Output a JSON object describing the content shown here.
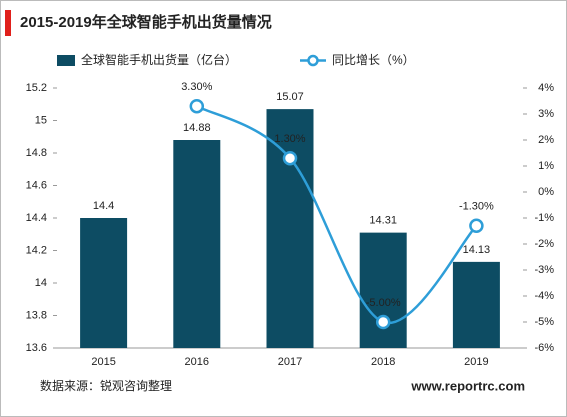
{
  "chart_data": {
    "type": "bar_line",
    "title": "2015-2019年全球智能手机出货量情况",
    "categories": [
      "2015",
      "2016",
      "2017",
      "2018",
      "2019"
    ],
    "series": [
      {
        "name": "全球智能手机出货量（亿台）",
        "color": "#0d4c63",
        "type": "bar",
        "values": [
          14.4,
          14.88,
          15.07,
          14.31,
          14.13
        ]
      },
      {
        "name": "同比增长（%）",
        "color": "#2e9ed8",
        "type": "line",
        "axis": "y2",
        "values": [
          null,
          3.3,
          1.3,
          -5.0,
          -1.3
        ],
        "value_labels": [
          null,
          "3.30%",
          "1.30%",
          "-5.00%",
          "-1.30%"
        ]
      }
    ],
    "ylim": [
      13.6,
      15.2
    ],
    "yticks": [
      13.6,
      13.8,
      14,
      14.2,
      14.4,
      14.6,
      14.8,
      15,
      15.2
    ],
    "y2lim": [
      -6,
      4
    ],
    "y2ticks": [
      {
        "value": -6,
        "label": "-6%"
      },
      {
        "value": -5,
        "label": "-5%"
      },
      {
        "value": -4,
        "label": "-4%"
      },
      {
        "value": -3,
        "label": "-3%"
      },
      {
        "value": -2,
        "label": "-2%"
      },
      {
        "value": -1,
        "label": "-1%"
      },
      {
        "value": 0,
        "label": "0%"
      },
      {
        "value": 1,
        "label": "1%"
      },
      {
        "value": 2,
        "label": "2%"
      },
      {
        "value": 3,
        "label": "3%"
      },
      {
        "value": 4,
        "label": "4%"
      }
    ],
    "grid": false,
    "legend": "top",
    "source": "数据来源：锐观咨询整理",
    "watermark": "www.reportrc.com"
  }
}
